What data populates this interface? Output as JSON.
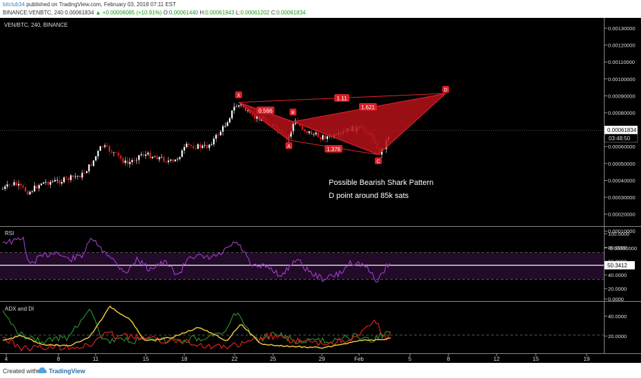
{
  "header": {
    "author": "bitclub34",
    "published": " published on TradingView.com, February 03, 2018 07:11 EST",
    "symbol_line": "BINANCE:VENBTC, 240",
    "last": "0.00061834",
    "change": "+0.00006085 (+10.91%)",
    "ohlc": {
      "o_label": "O:",
      "o": "0.00061440",
      "h_label": "H:",
      "h": "0.00061943",
      "l_label": "L:",
      "l": "0.00061202",
      "c_label": "C:",
      "c": "0.00061834"
    }
  },
  "chart_title": "VEN/BTC, 240, BINANCE",
  "price_pane": {
    "ticks": [
      "0.00130000",
      "0.00120000",
      "0.00110000",
      "0.00100000",
      "0.00090000",
      "0.00080000",
      "0.00070000",
      "0.00060000",
      "0.00050000",
      "0.00040000",
      "0.00030000",
      "0.00020000",
      "0.00010000",
      "-0.00000000"
    ],
    "current_price": "0.00061834",
    "countdown": "03:48:50",
    "pattern_points": {
      "x": "X",
      "a": "A",
      "b": "B",
      "c": "C",
      "d": "D"
    },
    "ratios": {
      "xa": "0.566",
      "xb": "1.11",
      "ac": "1.376",
      "bd": "1.621"
    },
    "annotation_1": "Possible Bearish Shark Pattern",
    "annotation_2": "D point around 85k sats",
    "colors": {
      "pattern_fill": "#c0121a",
      "pattern_line": "#e5252b",
      "bull": "#ffffff",
      "bear": "#e3201b"
    }
  },
  "rsi_pane": {
    "label": "RSI",
    "ticks": [
      "100.0000",
      "80.0000",
      "60.0000",
      "40.0000",
      "20.0000",
      "0.0000"
    ],
    "current": "50.3412",
    "color": "#a040c8"
  },
  "adx_pane": {
    "label": "ADX and DI",
    "ticks": [
      "40.0000",
      "20.0000"
    ],
    "colors": {
      "adx": "#e8c840",
      "plus_di": "#2a8c2a",
      "minus_di": "#e32020"
    }
  },
  "time_axis": {
    "labels": [
      "4",
      "8",
      "11",
      "15",
      "18",
      "22",
      "25",
      "29",
      "Feb",
      "5",
      "8",
      "12",
      "15",
      "19"
    ]
  },
  "footer": {
    "created": "Created with",
    "brand": "TradingView"
  }
}
